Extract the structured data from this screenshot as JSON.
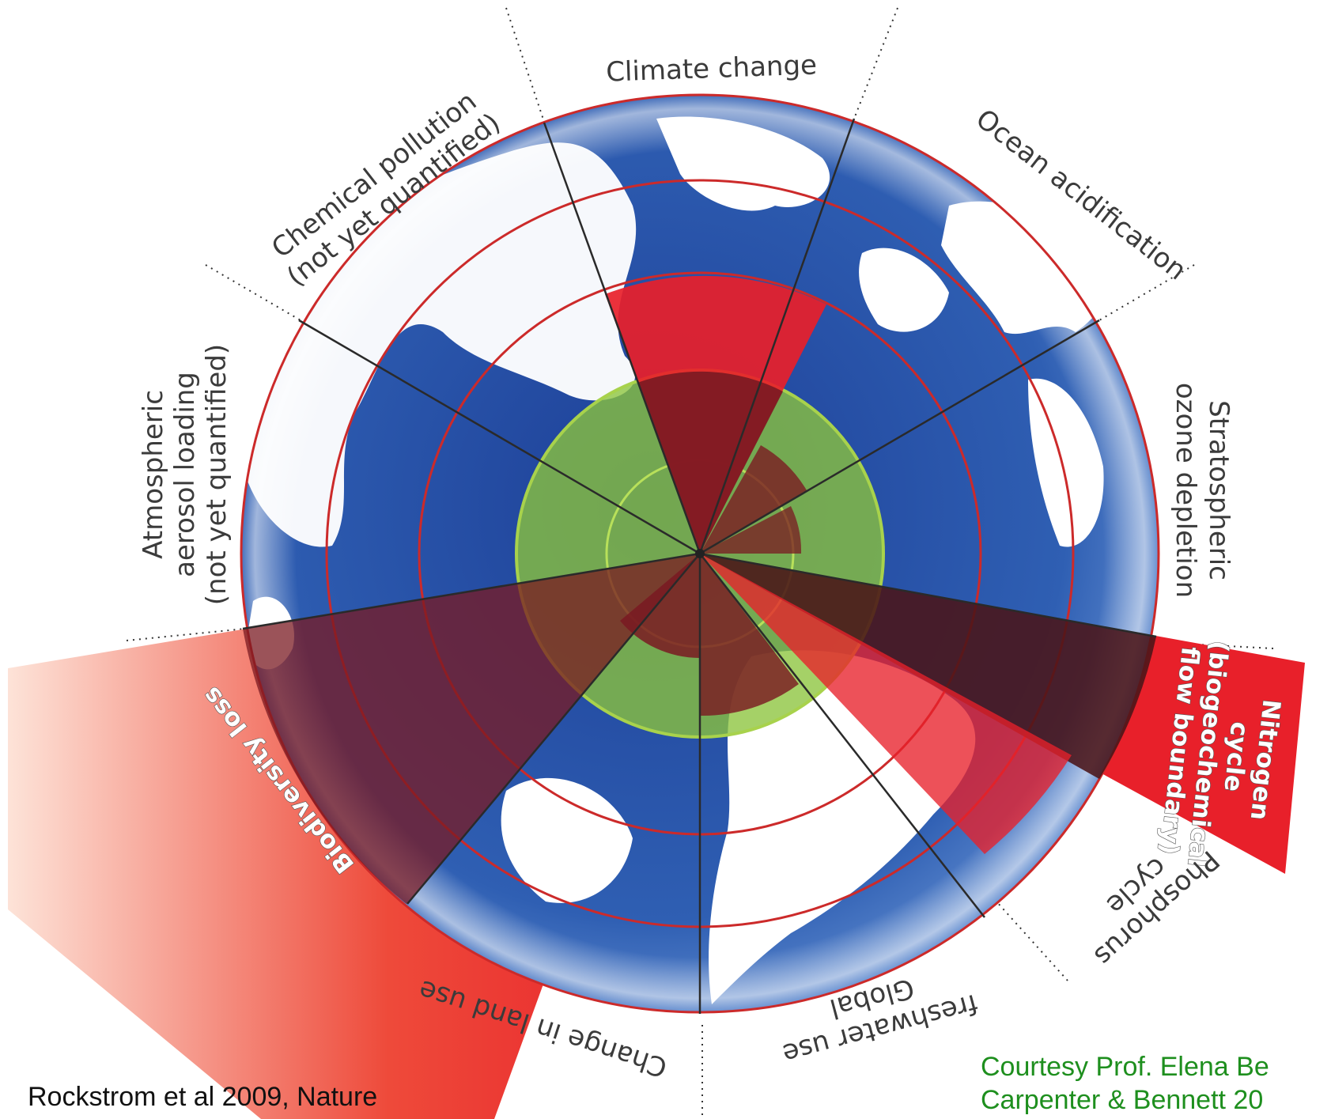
{
  "diagram": {
    "colors": {
      "ocean": "#2f5fb3",
      "land": "#ffffff",
      "boundary_ring": "#cc2a2a",
      "safe_zone": "#8cc43c",
      "exceeded": "#e8202a",
      "exceeded_dark": "#7a1a22",
      "credit_green": "#1e8f1e"
    },
    "labels": {
      "climate_change": "Climate change",
      "ocean_acidification": "Ocean acidification",
      "stratospheric_ozone_1": "Stratospheric",
      "stratospheric_ozone_2": "ozone depletion",
      "nitrogen_1": "Nitrogen",
      "nitrogen_2": "cycle",
      "nitrogen_3": "(biogeochemical",
      "nitrogen_4": "flow boundary)",
      "phosphorus_1": "Phosphorus",
      "phosphorus_2": "cycle",
      "freshwater_1": "Global",
      "freshwater_2": "freshwater use",
      "land_use": "Change in land use",
      "biodiversity": "Biodiversity loss",
      "aerosol_1": "Atmospheric",
      "aerosol_2": "aerosol loading",
      "aerosol_3": "(not yet quantified)",
      "chemical_1": "Chemical pollution",
      "chemical_2": "(not yet quantified)"
    },
    "credits": {
      "left": "Rockstrom et al 2009, Nature",
      "right_1": "Courtesy Prof. Elena Be",
      "right_2": "Carpenter & Bennett 20"
    }
  }
}
